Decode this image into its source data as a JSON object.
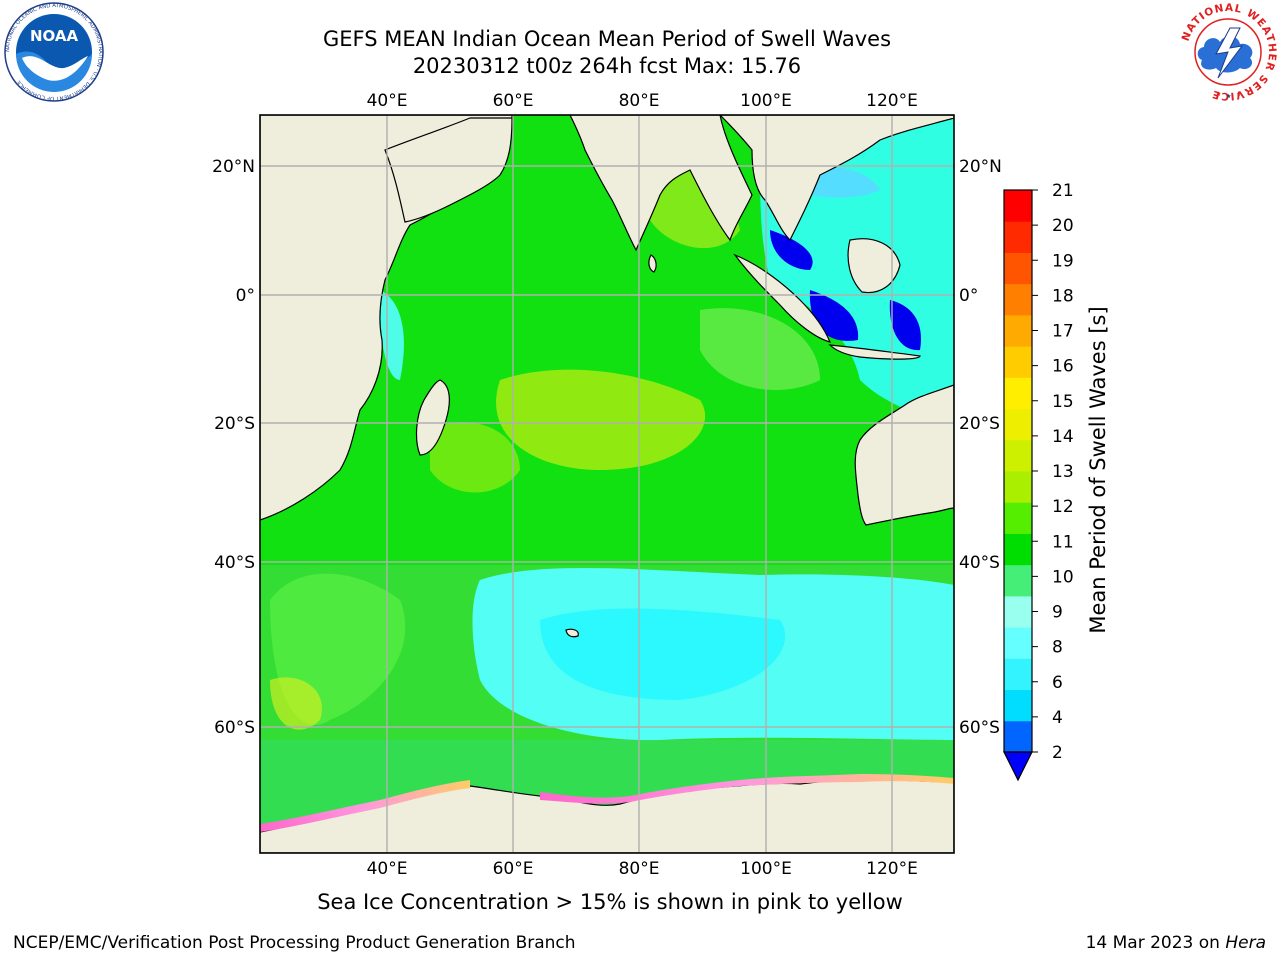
{
  "title": {
    "line1": "GEFS MEAN Indian Ocean Mean Period of Swell Waves",
    "line2": "20230312 t00z 264h fcst   Max: 15.76"
  },
  "map": {
    "region": "Indian Ocean",
    "lon_range": [
      20,
      130
    ],
    "lat_range": [
      -70,
      28
    ],
    "lon_ticks": [
      "40°E",
      "60°E",
      "80°E",
      "100°E",
      "120°E"
    ],
    "lat_ticks": [
      "20°N",
      "0°",
      "20°S",
      "40°S",
      "60°S"
    ],
    "grid": true,
    "land_color": "#efeddc",
    "coastline_color": "#000000"
  },
  "colorbar": {
    "label": "Mean Period of Swell Waves [s]",
    "tick_labels": [
      "2",
      "4",
      "6",
      "8",
      "9",
      "10",
      "11",
      "12",
      "13",
      "14",
      "15",
      "16",
      "17",
      "18",
      "19",
      "20",
      "21"
    ],
    "colors": [
      "#0066ff",
      "#00ddff",
      "#33f3ff",
      "#66ffff",
      "#99ffee",
      "#44ee77",
      "#00dd00",
      "#55ee00",
      "#aaee00",
      "#ccf000",
      "#eeee00",
      "#ffee00",
      "#ffcc00",
      "#ffaa00",
      "#ff8000",
      "#ff5500",
      "#ff2a00",
      "#ff0000"
    ],
    "under_color": "#0000ff"
  },
  "note": "Sea Ice Concentration > 15% is shown in pink to yellow",
  "footer": {
    "left": "NCEP/EMC/Verification Post Processing Product Generation Branch",
    "right_date": "14 Mar 2023 on ",
    "right_machine": "Hera"
  },
  "logos": {
    "noaa": "NOAA",
    "noaa_ring": "NATIONAL OCEANIC AND ATMOSPHERIC ADMINISTRATION · U.S. DEPARTMENT OF COMMERCE",
    "nws_ring": "NATIONAL WEATHER SERVICE"
  }
}
